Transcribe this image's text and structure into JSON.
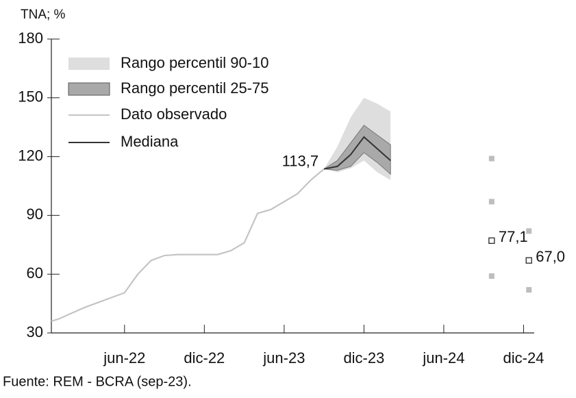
{
  "chart_data": {
    "type": "line",
    "title": "TNA; %",
    "source": "Fuente: REM - BCRA (sep-23).",
    "xlim": [
      -0.5,
      35.8
    ],
    "xticks": [
      {
        "value": 5,
        "label": "jun-22"
      },
      {
        "value": 11,
        "label": "dic-22"
      },
      {
        "value": 17,
        "label": "jun-23"
      },
      {
        "value": 23,
        "label": "dic-23"
      },
      {
        "value": 29,
        "label": "jun-24"
      },
      {
        "value": 35,
        "label": "dic-24"
      }
    ],
    "ylim": [
      30,
      180
    ],
    "yticks": [
      30,
      60,
      90,
      120,
      150,
      180
    ],
    "bands": [
      {
        "name": "Rango percentil 90-10",
        "color": "#dedede",
        "x": [
          20,
          21,
          22,
          23,
          24,
          25
        ],
        "upper": [
          113.7,
          125,
          140,
          150,
          147,
          143
        ],
        "lower": [
          113.7,
          112,
          114,
          118,
          112,
          108
        ]
      },
      {
        "name": "Rango percentil 25-75",
        "color": "#a9a9a9",
        "x": [
          20,
          21,
          22,
          23,
          24,
          25
        ],
        "upper": [
          113.7,
          118,
          127,
          136,
          131,
          126
        ],
        "lower": [
          113.7,
          113,
          115,
          122,
          117,
          111
        ]
      }
    ],
    "series": [
      {
        "name": "Dato observado",
        "color": "#c4c4c4",
        "x": [
          -0.5,
          0,
          1,
          2,
          3,
          4,
          5,
          6,
          7,
          8,
          9,
          10,
          11,
          12,
          13,
          14,
          15,
          16,
          17,
          18,
          19,
          20
        ],
        "values": [
          36,
          37,
          40,
          43,
          45.5,
          48,
          50.5,
          60,
          67,
          69.5,
          70,
          70,
          70,
          70,
          72,
          76,
          91,
          93,
          97,
          101,
          108,
          113.7
        ]
      },
      {
        "name": "Mediana",
        "color": "#333333",
        "x": [
          20,
          21,
          22,
          23,
          24,
          25
        ],
        "values": [
          113.7,
          115,
          121,
          130,
          124,
          118
        ]
      }
    ],
    "annotation": {
      "text": "113,7",
      "x": 20,
      "value": 113.7
    },
    "points": {
      "color": "#bdbdbd",
      "x": [
        32.6,
        32.6,
        32.6,
        35.4,
        35.4
      ],
      "values": [
        119,
        97,
        59,
        82,
        52
      ]
    },
    "median_points": {
      "color": "#333333",
      "x": [
        32.6,
        35.4
      ],
      "values": [
        77.1,
        67.0
      ],
      "value_labels": [
        "77,1",
        "67,0"
      ]
    }
  }
}
